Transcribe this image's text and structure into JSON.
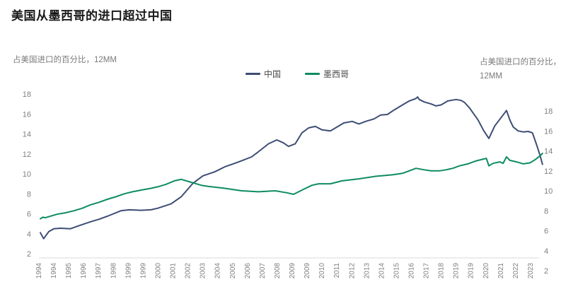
{
  "page": {
    "title": "美国从墨西哥的进口超过中国"
  },
  "chart": {
    "left_axis_caption": "占美国进口的百分比，12MM",
    "right_axis_caption_line1": "占美国进口的百分比，",
    "right_axis_caption_line2": "12MM",
    "legend_items": [
      {
        "label": "中国"
      },
      {
        "label": "墨西哥"
      }
    ]
  },
  "colors": {
    "china_line": "#3d4d74",
    "mexico_line": "#0e8c62",
    "axis_line": "#d8d8d8",
    "tick_text": "#7f7f7f",
    "title_text": "#1a1a1a"
  },
  "chart_data": {
    "type": "line",
    "title": "美国从墨西哥的进口超过中国",
    "ylabel_left": "占美国进口的百分比，12MM",
    "ylabel_right": "占美国进口的百分比，12MM",
    "grid": false,
    "legend_position": "top-center",
    "x_range": [
      1994,
      2024
    ],
    "left_axis_range": [
      2,
      18
    ],
    "right_axis_range": [
      2,
      18
    ],
    "right_axis_offset_units": 1.7,
    "y_ticks_left": [
      18,
      16,
      14,
      12,
      10,
      8,
      6,
      4,
      2
    ],
    "y_ticks_right": [
      18,
      16,
      14,
      12,
      10,
      8,
      6,
      4,
      2
    ],
    "x_tick_labels": [
      "1994",
      "1994",
      "1995",
      "1996",
      "1997",
      "1998",
      "1999",
      "1999",
      "2000",
      "2001",
      "2002",
      "2003",
      "2004",
      "2005",
      "2006",
      "2007",
      "2008",
      "2009",
      "2009",
      "2010",
      "2011",
      "2012",
      "2013",
      "2014",
      "2015",
      "2016",
      "2017",
      "2018",
      "2019",
      "2019",
      "2020",
      "2021",
      "2022",
      "2023"
    ],
    "series": [
      {
        "name": "中国",
        "color": "#3d4d74",
        "values_read_on": "left_axis",
        "points": [
          [
            1994.0,
            4.1
          ],
          [
            1994.2,
            3.5
          ],
          [
            1994.5,
            4.2
          ],
          [
            1994.8,
            4.5
          ],
          [
            1995.2,
            4.55
          ],
          [
            1995.8,
            4.5
          ],
          [
            1996.3,
            4.8
          ],
          [
            1997.0,
            5.2
          ],
          [
            1997.5,
            5.45
          ],
          [
            1998.0,
            5.75
          ],
          [
            1998.8,
            6.3
          ],
          [
            1999.3,
            6.4
          ],
          [
            2000.0,
            6.35
          ],
          [
            2000.6,
            6.4
          ],
          [
            2001.0,
            6.55
          ],
          [
            2001.8,
            7.0
          ],
          [
            2002.4,
            7.7
          ],
          [
            2003.1,
            9.05
          ],
          [
            2003.7,
            9.8
          ],
          [
            2004.4,
            10.2
          ],
          [
            2005.0,
            10.7
          ],
          [
            2005.5,
            11.0
          ],
          [
            2006.0,
            11.3
          ],
          [
            2006.6,
            11.7
          ],
          [
            2007.0,
            12.2
          ],
          [
            2007.6,
            13.0
          ],
          [
            2008.1,
            13.4
          ],
          [
            2008.5,
            13.1
          ],
          [
            2008.8,
            12.75
          ],
          [
            2009.2,
            13.0
          ],
          [
            2009.6,
            14.1
          ],
          [
            2010.0,
            14.6
          ],
          [
            2010.4,
            14.75
          ],
          [
            2010.8,
            14.4
          ],
          [
            2011.3,
            14.3
          ],
          [
            2011.7,
            14.7
          ],
          [
            2012.1,
            15.1
          ],
          [
            2012.6,
            15.25
          ],
          [
            2013.0,
            15.0
          ],
          [
            2013.4,
            15.25
          ],
          [
            2013.9,
            15.5
          ],
          [
            2014.3,
            15.9
          ],
          [
            2014.7,
            15.95
          ],
          [
            2015.1,
            16.4
          ],
          [
            2015.6,
            16.9
          ],
          [
            2016.0,
            17.3
          ],
          [
            2016.4,
            17.55
          ],
          [
            2016.5,
            17.7
          ],
          [
            2016.6,
            17.45
          ],
          [
            2016.9,
            17.2
          ],
          [
            2017.3,
            17.0
          ],
          [
            2017.6,
            16.8
          ],
          [
            2017.9,
            16.9
          ],
          [
            2018.3,
            17.3
          ],
          [
            2018.8,
            17.45
          ],
          [
            2019.1,
            17.35
          ],
          [
            2019.3,
            17.15
          ],
          [
            2019.6,
            16.6
          ],
          [
            2020.1,
            15.4
          ],
          [
            2020.45,
            14.3
          ],
          [
            2020.75,
            13.55
          ],
          [
            2021.1,
            14.8
          ],
          [
            2021.6,
            15.9
          ],
          [
            2021.8,
            16.35
          ],
          [
            2022.0,
            15.4
          ],
          [
            2022.2,
            14.7
          ],
          [
            2022.5,
            14.3
          ],
          [
            2022.8,
            14.2
          ],
          [
            2023.1,
            14.25
          ],
          [
            2023.35,
            14.1
          ],
          [
            2023.6,
            12.9
          ],
          [
            2023.8,
            11.85
          ],
          [
            2023.95,
            10.95
          ]
        ]
      },
      {
        "name": "墨西哥",
        "color": "#0e8c62",
        "values_read_on": "left_axis",
        "points": [
          [
            1994.0,
            5.5
          ],
          [
            1994.15,
            5.65
          ],
          [
            1994.3,
            5.6
          ],
          [
            1994.5,
            5.7
          ],
          [
            1995.0,
            5.95
          ],
          [
            1995.5,
            6.1
          ],
          [
            1996.0,
            6.3
          ],
          [
            1996.5,
            6.55
          ],
          [
            1997.0,
            6.9
          ],
          [
            1997.5,
            7.15
          ],
          [
            1998.0,
            7.45
          ],
          [
            1998.5,
            7.7
          ],
          [
            1999.0,
            8.0
          ],
          [
            1999.5,
            8.2
          ],
          [
            2000.1,
            8.4
          ],
          [
            2000.6,
            8.55
          ],
          [
            2001.0,
            8.7
          ],
          [
            2001.5,
            8.95
          ],
          [
            2002.0,
            9.3
          ],
          [
            2002.4,
            9.45
          ],
          [
            2003.0,
            9.15
          ],
          [
            2003.6,
            8.85
          ],
          [
            2004.0,
            8.75
          ],
          [
            2004.5,
            8.65
          ],
          [
            2005.0,
            8.55
          ],
          [
            2006.0,
            8.3
          ],
          [
            2007.0,
            8.2
          ],
          [
            2007.5,
            8.25
          ],
          [
            2008.0,
            8.3
          ],
          [
            2008.7,
            8.1
          ],
          [
            2009.1,
            7.95
          ],
          [
            2009.7,
            8.45
          ],
          [
            2010.2,
            8.85
          ],
          [
            2010.6,
            9.0
          ],
          [
            2011.3,
            9.0
          ],
          [
            2012.0,
            9.3
          ],
          [
            2013.0,
            9.5
          ],
          [
            2014.0,
            9.75
          ],
          [
            2015.0,
            9.9
          ],
          [
            2015.6,
            10.05
          ],
          [
            2016.0,
            10.3
          ],
          [
            2016.4,
            10.55
          ],
          [
            2016.9,
            10.4
          ],
          [
            2017.3,
            10.3
          ],
          [
            2017.8,
            10.3
          ],
          [
            2018.2,
            10.4
          ],
          [
            2018.6,
            10.55
          ],
          [
            2019.0,
            10.8
          ],
          [
            2019.5,
            11.0
          ],
          [
            2020.0,
            11.3
          ],
          [
            2020.6,
            11.55
          ],
          [
            2020.75,
            10.8
          ],
          [
            2021.0,
            11.05
          ],
          [
            2021.4,
            11.2
          ],
          [
            2021.6,
            11.05
          ],
          [
            2021.8,
            11.7
          ],
          [
            2022.0,
            11.35
          ],
          [
            2022.4,
            11.2
          ],
          [
            2022.8,
            11.0
          ],
          [
            2023.2,
            11.1
          ],
          [
            2023.5,
            11.4
          ],
          [
            2023.8,
            11.8
          ],
          [
            2023.95,
            12.05
          ]
        ]
      }
    ]
  }
}
